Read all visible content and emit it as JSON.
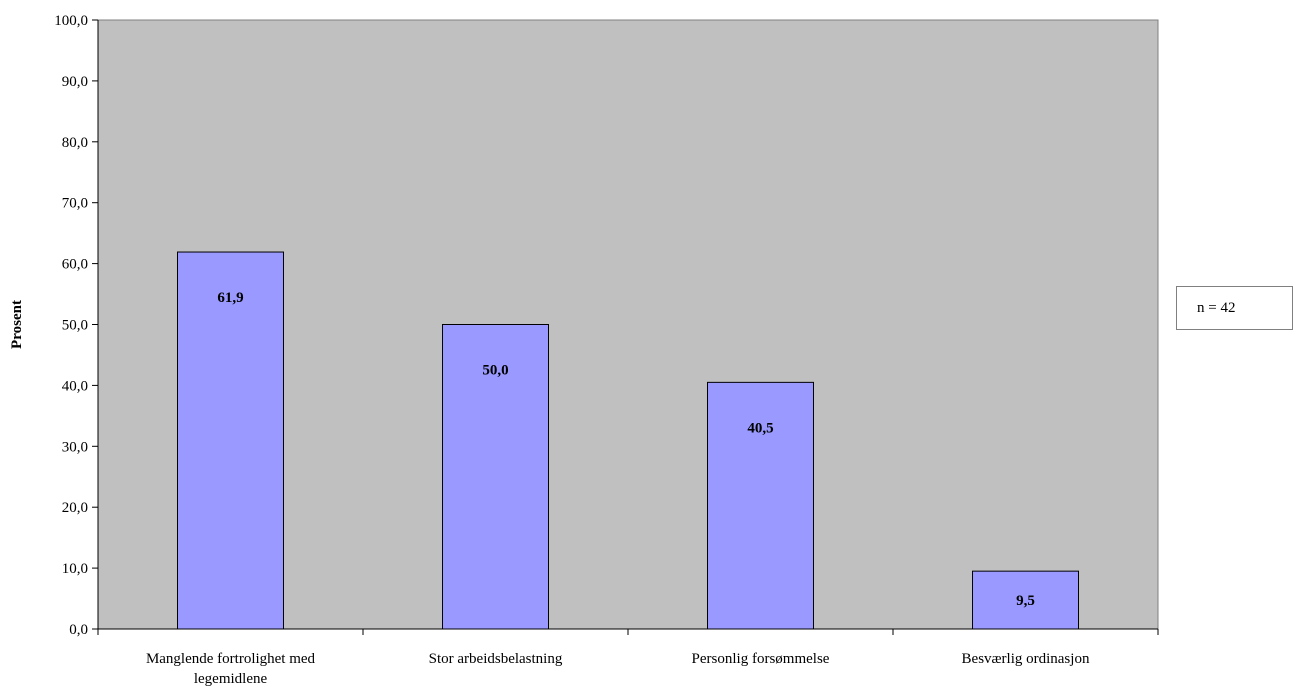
{
  "chart_data": {
    "type": "bar",
    "categories": [
      [
        "Manglende fortrolighet med",
        "legemidlene"
      ],
      [
        "Stor arbeidsbelastning"
      ],
      [
        "Personlig forsømmelse"
      ],
      [
        "Besværlig ordinasjon"
      ]
    ],
    "values": [
      61.9,
      50.0,
      40.5,
      9.5
    ],
    "value_labels": [
      "61,9",
      "50,0",
      "40,5",
      "9,5"
    ],
    "ylabel": "Prosent",
    "ylim": [
      0,
      100
    ],
    "yticks": [
      "0,0",
      "10,0",
      "20,0",
      "30,0",
      "40,0",
      "50,0",
      "60,0",
      "70,0",
      "80,0",
      "90,0",
      "100,0"
    ],
    "grid": false,
    "plot_background": "#c0c0c0",
    "bar_color": "#9999ff",
    "bar_edge_color": "#000000",
    "annotation": "n = 42"
  }
}
